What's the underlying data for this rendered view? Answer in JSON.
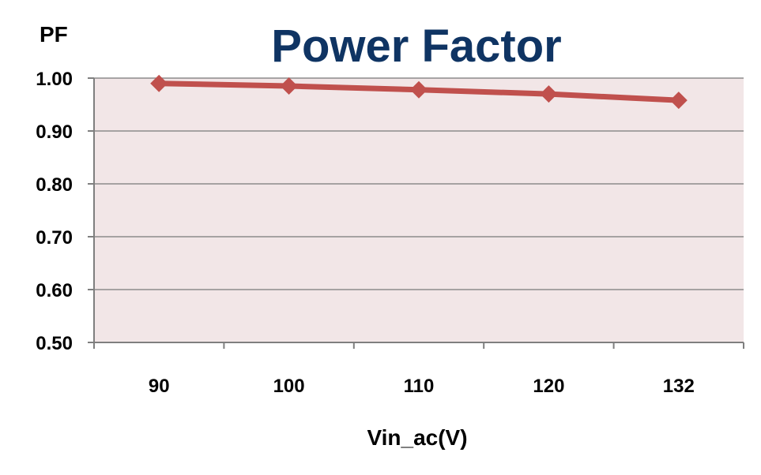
{
  "chart_data": {
    "type": "line",
    "title": "Power Factor",
    "ylabel": "PF",
    "xlabel": "Vin_ac(V)",
    "categories": [
      "90",
      "100",
      "110",
      "120",
      "132"
    ],
    "series": [
      {
        "values": [
          0.99,
          0.985,
          0.978,
          0.97,
          0.958
        ]
      }
    ],
    "ylim": [
      0.5,
      1.0
    ],
    "yticks": [
      "0.50",
      "0.60",
      "0.70",
      "0.80",
      "0.90",
      "1.00"
    ],
    "grid": true,
    "legend": "none",
    "colors": {
      "title": "#0f3463",
      "series": "#c0504d",
      "plot_background": "#f2e6e7",
      "gridline": "#8c8c8c",
      "axis": "#7f7f7f"
    }
  }
}
